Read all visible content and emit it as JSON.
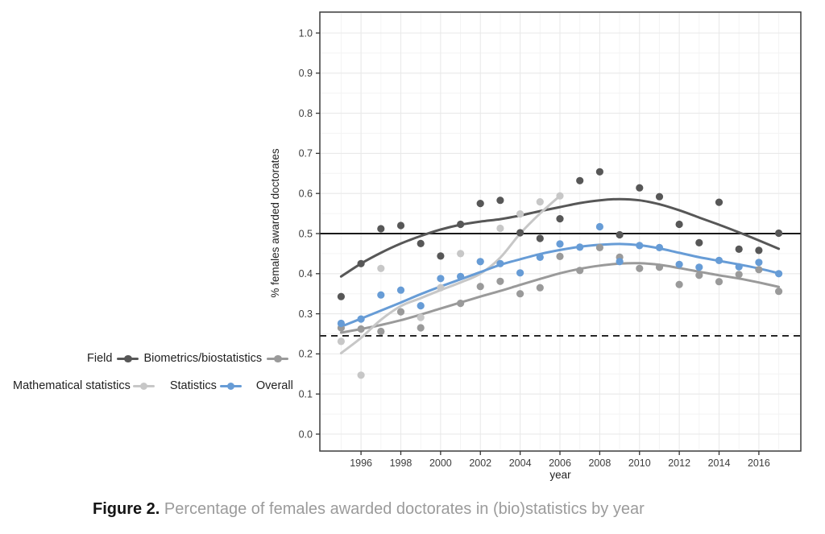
{
  "figure": {
    "caption_label": "Figure 2.",
    "caption_text": "Percentage of females awarded doctorates in (bio)statistics by year"
  },
  "chart_data": {
    "type": "scatter",
    "xlabel": "year",
    "ylabel": "% females awarded doctorates",
    "xlim": [
      1993.93,
      2018.11
    ],
    "ylim": [
      -0.0422,
      1.0522
    ],
    "x_major_ticks": [
      1996,
      1998,
      2000,
      2002,
      2004,
      2006,
      2008,
      2010,
      2012,
      2014,
      2016
    ],
    "x_minor_ticks": [
      1995,
      1997,
      1999,
      2001,
      2003,
      2005,
      2007,
      2009,
      2011,
      2013,
      2015,
      2017
    ],
    "y_major_ticks": [
      0.0,
      0.1,
      0.2,
      0.3,
      0.4,
      0.5,
      0.6,
      0.7,
      0.8,
      0.9,
      1.0
    ],
    "y_minor_ticks": [
      0.05,
      0.15,
      0.25,
      0.35,
      0.45,
      0.55,
      0.65,
      0.75,
      0.85,
      0.95,
      1.05
    ],
    "grid": "major+minor",
    "legend_title": "Field",
    "reference_lines": [
      {
        "y": 0.5,
        "style": "solid",
        "color": "#1a1a1a"
      },
      {
        "y": 0.245,
        "style": "dashed",
        "color": "#1a1a1a"
      }
    ],
    "series": [
      {
        "name": "Biometrics/biostatistics",
        "color": "#575757",
        "points": [
          [
            1995,
            0.343
          ],
          [
            1996,
            0.425
          ],
          [
            1997,
            0.512
          ],
          [
            1998,
            0.52
          ],
          [
            1999,
            0.475
          ],
          [
            2000,
            0.444
          ],
          [
            2001,
            0.523
          ],
          [
            2002,
            0.575
          ],
          [
            2003,
            0.583
          ],
          [
            2004,
            0.502
          ],
          [
            2005,
            0.488
          ],
          [
            2006,
            0.537
          ],
          [
            2007,
            0.632
          ],
          [
            2008,
            0.654
          ],
          [
            2009,
            0.497
          ],
          [
            2010,
            0.614
          ],
          [
            2011,
            0.592
          ],
          [
            2012,
            0.523
          ],
          [
            2013,
            0.477
          ],
          [
            2014,
            0.578
          ],
          [
            2015,
            0.461
          ],
          [
            2016,
            0.458
          ],
          [
            2017,
            0.501
          ]
        ],
        "smooth": [
          [
            1995,
            0.393
          ],
          [
            1996,
            0.425
          ],
          [
            1997,
            0.452
          ],
          [
            1998,
            0.475
          ],
          [
            1999,
            0.494
          ],
          [
            2000,
            0.51
          ],
          [
            2001,
            0.522
          ],
          [
            2002,
            0.53
          ],
          [
            2003,
            0.536
          ],
          [
            2004,
            0.545
          ],
          [
            2005,
            0.556
          ],
          [
            2006,
            0.566
          ],
          [
            2007,
            0.576
          ],
          [
            2008,
            0.583
          ],
          [
            2009,
            0.586
          ],
          [
            2010,
            0.583
          ],
          [
            2011,
            0.573
          ],
          [
            2012,
            0.558
          ],
          [
            2013,
            0.54
          ],
          [
            2014,
            0.522
          ],
          [
            2015,
            0.503
          ],
          [
            2016,
            0.483
          ],
          [
            2017,
            0.462
          ]
        ]
      },
      {
        "name": "Mathematical statistics",
        "color": "#9a9a9a",
        "points": [
          [
            1995,
            0.265
          ],
          [
            1996,
            0.262
          ],
          [
            1997,
            0.256
          ],
          [
            1998,
            0.305
          ],
          [
            1999,
            0.265
          ],
          [
            2001,
            0.326
          ],
          [
            2002,
            0.368
          ],
          [
            2003,
            0.381
          ],
          [
            2004,
            0.35
          ],
          [
            2005,
            0.365
          ],
          [
            2006,
            0.443
          ],
          [
            2007,
            0.408
          ],
          [
            2008,
            0.465
          ],
          [
            2009,
            0.441
          ],
          [
            2010,
            0.413
          ],
          [
            2011,
            0.416
          ],
          [
            2012,
            0.373
          ],
          [
            2013,
            0.396
          ],
          [
            2014,
            0.38
          ],
          [
            2015,
            0.398
          ],
          [
            2016,
            0.41
          ],
          [
            2017,
            0.356
          ]
        ],
        "smooth": [
          [
            1995,
            0.253
          ],
          [
            1996,
            0.262
          ],
          [
            1997,
            0.272
          ],
          [
            1998,
            0.284
          ],
          [
            1999,
            0.298
          ],
          [
            2000,
            0.313
          ],
          [
            2001,
            0.328
          ],
          [
            2002,
            0.343
          ],
          [
            2003,
            0.357
          ],
          [
            2004,
            0.372
          ],
          [
            2005,
            0.387
          ],
          [
            2006,
            0.401
          ],
          [
            2007,
            0.412
          ],
          [
            2008,
            0.42
          ],
          [
            2009,
            0.425
          ],
          [
            2010,
            0.426
          ],
          [
            2011,
            0.422
          ],
          [
            2012,
            0.414
          ],
          [
            2013,
            0.405
          ],
          [
            2014,
            0.396
          ],
          [
            2015,
            0.388
          ],
          [
            2016,
            0.378
          ],
          [
            2017,
            0.367
          ]
        ]
      },
      {
        "name": "Statistics",
        "color": "#c7c7c7",
        "points": [
          [
            1995,
            0.231
          ],
          [
            1996,
            0.147
          ],
          [
            1997,
            0.413
          ],
          [
            1999,
            0.291
          ],
          [
            2000,
            0.365
          ],
          [
            2001,
            0.45
          ],
          [
            2002,
            0.43
          ],
          [
            2003,
            0.513
          ],
          [
            2004,
            0.549
          ],
          [
            2005,
            0.579
          ],
          [
            2006,
            0.594
          ]
        ],
        "smooth": [
          [
            1995,
            0.202
          ],
          [
            1996,
            0.24
          ],
          [
            1997,
            0.285
          ],
          [
            1998,
            0.319
          ],
          [
            1999,
            0.339
          ],
          [
            2000,
            0.359
          ],
          [
            2001,
            0.378
          ],
          [
            2002,
            0.4
          ],
          [
            2003,
            0.44
          ],
          [
            2004,
            0.5
          ],
          [
            2005,
            0.55
          ],
          [
            2006,
            0.594
          ]
        ]
      },
      {
        "name": "Overall",
        "color": "#679cd6",
        "points": [
          [
            1995,
            0.276
          ],
          [
            1996,
            0.287
          ],
          [
            1997,
            0.347
          ],
          [
            1998,
            0.359
          ],
          [
            1999,
            0.32
          ],
          [
            2000,
            0.388
          ],
          [
            2001,
            0.393
          ],
          [
            2002,
            0.43
          ],
          [
            2003,
            0.425
          ],
          [
            2004,
            0.402
          ],
          [
            2005,
            0.441
          ],
          [
            2006,
            0.474
          ],
          [
            2007,
            0.466
          ],
          [
            2008,
            0.517
          ],
          [
            2009,
            0.43
          ],
          [
            2010,
            0.47
          ],
          [
            2011,
            0.465
          ],
          [
            2012,
            0.423
          ],
          [
            2013,
            0.416
          ],
          [
            2014,
            0.433
          ],
          [
            2015,
            0.417
          ],
          [
            2016,
            0.428
          ],
          [
            2017,
            0.4
          ]
        ],
        "smooth": [
          [
            1995,
            0.268
          ],
          [
            1996,
            0.288
          ],
          [
            1997,
            0.308
          ],
          [
            1998,
            0.328
          ],
          [
            1999,
            0.349
          ],
          [
            2000,
            0.368
          ],
          [
            2001,
            0.386
          ],
          [
            2002,
            0.404
          ],
          [
            2003,
            0.422
          ],
          [
            2004,
            0.436
          ],
          [
            2005,
            0.449
          ],
          [
            2006,
            0.459
          ],
          [
            2007,
            0.467
          ],
          [
            2008,
            0.472
          ],
          [
            2009,
            0.474
          ],
          [
            2010,
            0.471
          ],
          [
            2011,
            0.463
          ],
          [
            2012,
            0.452
          ],
          [
            2013,
            0.441
          ],
          [
            2014,
            0.432
          ],
          [
            2015,
            0.423
          ],
          [
            2016,
            0.413
          ],
          [
            2017,
            0.401
          ]
        ]
      }
    ]
  }
}
